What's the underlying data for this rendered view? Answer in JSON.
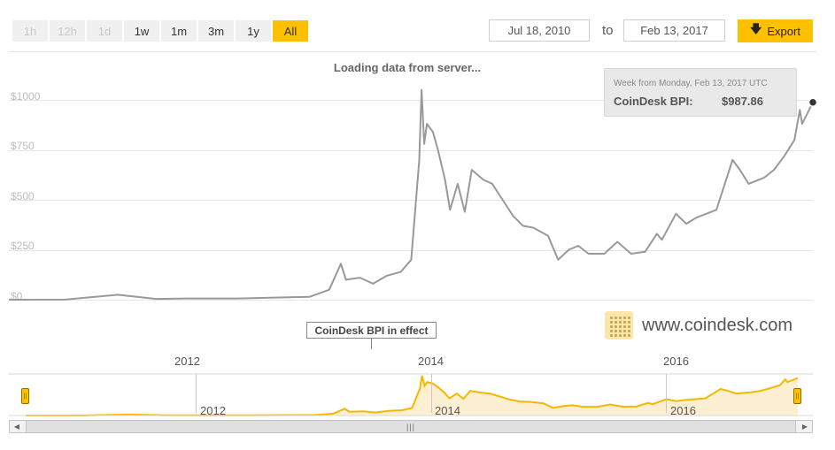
{
  "range_buttons": [
    {
      "label": "1h",
      "state": "disabled"
    },
    {
      "label": "12h",
      "state": "disabled"
    },
    {
      "label": "1d",
      "state": "disabled"
    },
    {
      "label": "1w",
      "state": "normal"
    },
    {
      "label": "1m",
      "state": "normal"
    },
    {
      "label": "3m",
      "state": "normal"
    },
    {
      "label": "1y",
      "state": "normal"
    },
    {
      "label": "All",
      "state": "active"
    }
  ],
  "date_range": {
    "from": "Jul 18, 2010",
    "to_label": "to",
    "to": "Feb 13, 2017"
  },
  "export_label": "Export",
  "status_text": "Loading data from server...",
  "tooltip": {
    "date": "Week from Monday, Feb 13, 2017 UTC",
    "label": "CoinDesk BPI:",
    "value": "$987.86"
  },
  "annotation": "CoinDesk BPI in effect",
  "brand": "www.coindesk.com",
  "navigator_years": [
    "2012",
    "2014",
    "2016"
  ],
  "colors": {
    "main_line": "#999999",
    "navigator_line": "#f5b800",
    "navigator_fill": "#fdf0d2",
    "accent": "#ffc000"
  },
  "chart_data": {
    "type": "line",
    "title": "",
    "xlabel": "",
    "ylabel": "",
    "x_range": [
      "2010-07-18",
      "2017-02-13"
    ],
    "y_ticks": [
      "$0",
      "$250",
      "$500",
      "$750",
      "$1000"
    ],
    "ylim": [
      0,
      1000
    ],
    "grid": true,
    "series": [
      {
        "name": "CoinDesk BPI",
        "x": [
          "2010-07-18",
          "2011-01-01",
          "2011-06-08",
          "2011-10-01",
          "2012-01-01",
          "2012-06-01",
          "2012-11-01",
          "2013-01-01",
          "2013-03-01",
          "2013-04-05",
          "2013-04-20",
          "2013-06-01",
          "2013-07-10",
          "2013-08-20",
          "2013-10-01",
          "2013-11-01",
          "2013-11-25",
          "2013-12-02",
          "2013-12-10",
          "2013-12-18",
          "2014-01-05",
          "2014-01-20",
          "2014-02-10",
          "2014-02-25",
          "2014-03-20",
          "2014-04-10",
          "2014-05-01",
          "2014-06-05",
          "2014-07-01",
          "2014-08-01",
          "2014-09-01",
          "2014-10-01",
          "2014-11-01",
          "2014-12-15",
          "2015-01-14",
          "2015-02-15",
          "2015-03-15",
          "2015-04-15",
          "2015-06-01",
          "2015-07-10",
          "2015-08-20",
          "2015-10-01",
          "2015-11-05",
          "2015-11-20",
          "2016-01-01",
          "2016-02-01",
          "2016-03-01",
          "2016-05-01",
          "2016-06-18",
          "2016-07-10",
          "2016-08-05",
          "2016-09-20",
          "2016-10-20",
          "2016-11-20",
          "2016-12-20",
          "2017-01-05",
          "2017-01-12",
          "2017-02-13"
        ],
        "values": [
          0.06,
          0.3,
          25,
          4,
          6,
          6,
          12,
          14,
          50,
          180,
          100,
          110,
          80,
          120,
          140,
          200,
          700,
          1050,
          780,
          880,
          840,
          750,
          600,
          450,
          580,
          440,
          650,
          600,
          580,
          500,
          420,
          370,
          360,
          320,
          200,
          250,
          270,
          230,
          230,
          290,
          230,
          240,
          330,
          300,
          430,
          380,
          410,
          450,
          700,
          650,
          580,
          610,
          650,
          720,
          800,
          950,
          880,
          987.86
        ]
      }
    ]
  }
}
